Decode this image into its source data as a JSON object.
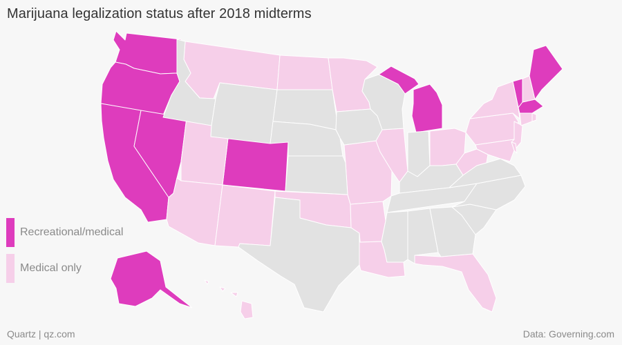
{
  "title": "Marijuana legalization status after 2018 midterms",
  "legend": [
    {
      "label": "Recreational/medical",
      "color": "#de3cbd"
    },
    {
      "label": "Medical only",
      "color": "#f6cfe9"
    }
  ],
  "colors": {
    "recreational": "#de3cbd",
    "medical": "#f6cfe9",
    "none": "#e2e2e2",
    "border": "#ffffff"
  },
  "states": [
    {
      "id": "WA",
      "status": "recreational"
    },
    {
      "id": "OR",
      "status": "recreational"
    },
    {
      "id": "CA",
      "status": "recreational"
    },
    {
      "id": "NV",
      "status": "recreational"
    },
    {
      "id": "CO",
      "status": "recreational"
    },
    {
      "id": "MI",
      "status": "recreational"
    },
    {
      "id": "VT",
      "status": "recreational"
    },
    {
      "id": "MA",
      "status": "recreational"
    },
    {
      "id": "ME",
      "status": "recreational"
    },
    {
      "id": "AK",
      "status": "recreational"
    },
    {
      "id": "MT",
      "status": "medical"
    },
    {
      "id": "ND",
      "status": "medical"
    },
    {
      "id": "MN",
      "status": "medical"
    },
    {
      "id": "UT",
      "status": "medical"
    },
    {
      "id": "AZ",
      "status": "medical"
    },
    {
      "id": "NM",
      "status": "medical"
    },
    {
      "id": "OK",
      "status": "medical"
    },
    {
      "id": "AR",
      "status": "medical"
    },
    {
      "id": "LA",
      "status": "medical"
    },
    {
      "id": "MO",
      "status": "medical"
    },
    {
      "id": "IL",
      "status": "medical"
    },
    {
      "id": "OH",
      "status": "medical"
    },
    {
      "id": "WV",
      "status": "medical"
    },
    {
      "id": "PA",
      "status": "medical"
    },
    {
      "id": "NY",
      "status": "medical"
    },
    {
      "id": "NH",
      "status": "medical"
    },
    {
      "id": "NJ",
      "status": "medical"
    },
    {
      "id": "DE",
      "status": "medical"
    },
    {
      "id": "MD",
      "status": "medical"
    },
    {
      "id": "CT",
      "status": "medical"
    },
    {
      "id": "RI",
      "status": "medical"
    },
    {
      "id": "FL",
      "status": "medical"
    },
    {
      "id": "HI",
      "status": "medical"
    },
    {
      "id": "ID",
      "status": "none"
    },
    {
      "id": "WY",
      "status": "none"
    },
    {
      "id": "SD",
      "status": "none"
    },
    {
      "id": "NE",
      "status": "none"
    },
    {
      "id": "KS",
      "status": "none"
    },
    {
      "id": "TX",
      "status": "none"
    },
    {
      "id": "IA",
      "status": "none"
    },
    {
      "id": "WI",
      "status": "none"
    },
    {
      "id": "IN",
      "status": "none"
    },
    {
      "id": "KY",
      "status": "none"
    },
    {
      "id": "TN",
      "status": "none"
    },
    {
      "id": "MS",
      "status": "none"
    },
    {
      "id": "AL",
      "status": "none"
    },
    {
      "id": "GA",
      "status": "none"
    },
    {
      "id": "SC",
      "status": "none"
    },
    {
      "id": "NC",
      "status": "none"
    },
    {
      "id": "VA",
      "status": "none"
    }
  ],
  "footer": {
    "source_left": "Quartz | qz.com",
    "source_right": "Data: Governing.com"
  }
}
